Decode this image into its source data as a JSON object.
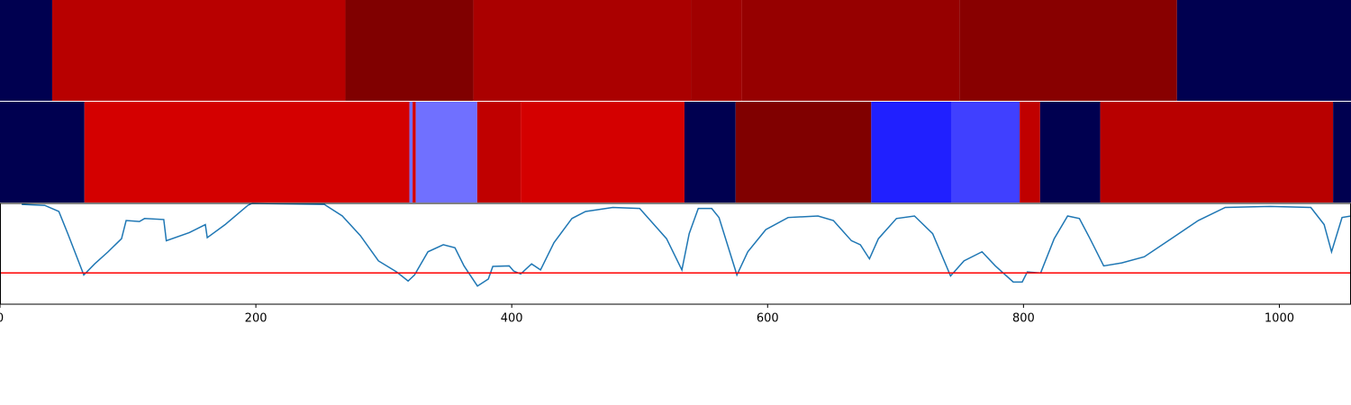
{
  "chart_data": {
    "type": "line",
    "xlim": [
      0,
      1056
    ],
    "xticks": [
      0,
      200,
      400,
      600,
      800,
      1000
    ],
    "ylim": [
      0,
      1
    ],
    "bands": [
      {
        "segments": [
          {
            "start": 0,
            "end": 40.8,
            "color": "#000050"
          },
          {
            "start": 40.8,
            "end": 270,
            "color": "#b80000"
          },
          {
            "start": 270,
            "end": 370,
            "color": "#800000"
          },
          {
            "start": 370,
            "end": 540,
            "color": "#aa0000"
          },
          {
            "start": 540,
            "end": 580,
            "color": "#a00000"
          },
          {
            "start": 580,
            "end": 750,
            "color": "#960000"
          },
          {
            "start": 750,
            "end": 920,
            "color": "#880000"
          },
          {
            "start": 920,
            "end": 1056,
            "color": "#000050"
          }
        ]
      },
      {
        "segments": [
          {
            "start": 0,
            "end": 66,
            "color": "#000050"
          },
          {
            "start": 66,
            "end": 320,
            "color": "#d40000"
          },
          {
            "start": 320,
            "end": 322.5,
            "color": "#7070ff"
          },
          {
            "start": 322.5,
            "end": 325,
            "color": "#d40000"
          },
          {
            "start": 325,
            "end": 373,
            "color": "#7070ff"
          },
          {
            "start": 373,
            "end": 407,
            "color": "#c00000"
          },
          {
            "start": 407,
            "end": 535,
            "color": "#d40000"
          },
          {
            "start": 535,
            "end": 575,
            "color": "#000050"
          },
          {
            "start": 575,
            "end": 681,
            "color": "#800000"
          },
          {
            "start": 681,
            "end": 744,
            "color": "#2020ff"
          },
          {
            "start": 744,
            "end": 797,
            "color": "#4040ff"
          },
          {
            "start": 797,
            "end": 813,
            "color": "#c00000"
          },
          {
            "start": 813,
            "end": 860,
            "color": "#000050"
          },
          {
            "start": 860,
            "end": 1042,
            "color": "#b80000"
          },
          {
            "start": 1042,
            "end": 1056,
            "color": "#000050"
          }
        ]
      }
    ],
    "threshold": {
      "value": 0.31,
      "color": "#ff0000"
    },
    "series": [
      {
        "color": "#1f77b4",
        "x": [
          17,
          35,
          46,
          53,
          65.5,
          74,
          84.5,
          95,
          98.6,
          109,
          113,
          128,
          130,
          148,
          160.5,
          162,
          176,
          193.7,
          197,
          253.5,
          267.6,
          281.7,
          295.8,
          310,
          319,
          324,
          334.5,
          346.5,
          355.6,
          362.7,
          373.2,
          381.7,
          385.2,
          398,
          401.4,
          407,
          415.5,
          422.5,
          433,
          447,
          457.7,
          479,
          500,
          521,
          533,
          538.7,
          545.8,
          556.3,
          562,
          576,
          584.5,
          598.6,
          616,
          639.4,
          651.4,
          665.5,
          672.5,
          679.6,
          686.6,
          700.7,
          714.8,
          729,
          743,
          753.5,
          767.6,
          778,
          792,
          799,
          803,
          813.4,
          824,
          834.5,
          843.7,
          852,
          862.7,
          876.8,
          894.4,
          915.5,
          936.6,
          957.7,
          993,
          1024.6,
          1035,
          1040.8,
          1049,
          1056
        ],
        "values": [
          0.99,
          0.98,
          0.92,
          0.7,
          0.29,
          0.4,
          0.52,
          0.65,
          0.83,
          0.82,
          0.85,
          0.84,
          0.63,
          0.71,
          0.79,
          0.66,
          0.79,
          0.98,
          1.0,
          0.99,
          0.875,
          0.68,
          0.43,
          0.32,
          0.23,
          0.29,
          0.52,
          0.59,
          0.56,
          0.38,
          0.18,
          0.25,
          0.375,
          0.38,
          0.33,
          0.3,
          0.4,
          0.34,
          0.61,
          0.85,
          0.92,
          0.96,
          0.95,
          0.65,
          0.34,
          0.7,
          0.95,
          0.95,
          0.86,
          0.29,
          0.52,
          0.74,
          0.86,
          0.875,
          0.83,
          0.63,
          0.59,
          0.45,
          0.65,
          0.85,
          0.875,
          0.7,
          0.28,
          0.43,
          0.52,
          0.38,
          0.22,
          0.22,
          0.32,
          0.31,
          0.65,
          0.875,
          0.85,
          0.65,
          0.38,
          0.41,
          0.47,
          0.65,
          0.83,
          0.96,
          0.97,
          0.96,
          0.79,
          0.52,
          0.86,
          0.875
        ]
      }
    ]
  }
}
